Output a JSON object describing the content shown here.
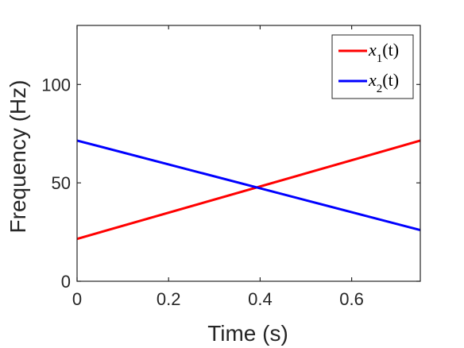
{
  "chart_data": {
    "type": "line",
    "title": "",
    "xlabel": "Time (s)",
    "ylabel": "Frequency (Hz)",
    "xlim": [
      0,
      0.75
    ],
    "ylim": [
      0,
      130
    ],
    "x_ticks": [
      0,
      0.2,
      0.4,
      0.6
    ],
    "x_tick_labels": [
      "0",
      "0.2",
      "0.4",
      "0.6"
    ],
    "y_ticks": [
      0,
      50,
      100
    ],
    "y_tick_labels": [
      "0",
      "50",
      "100"
    ],
    "grid": false,
    "legend_position": "top-right",
    "series": [
      {
        "name": "x1(t)",
        "legend_base": "x",
        "legend_sub": "1",
        "legend_arg": "(t)",
        "color": "#ff0000",
        "x": [
          0,
          0.75
        ],
        "y": [
          21.5,
          71.5
        ]
      },
      {
        "name": "x2(t)",
        "legend_base": "x",
        "legend_sub": "2",
        "legend_arg": "(t)",
        "color": "#0000ff",
        "x": [
          0,
          0.75
        ],
        "y": [
          71.5,
          26
        ]
      }
    ]
  }
}
